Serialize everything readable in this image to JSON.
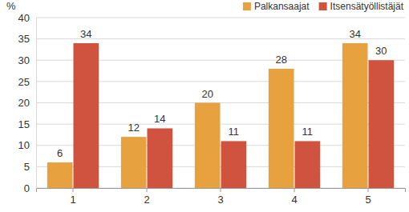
{
  "chart_data": {
    "type": "bar",
    "y_label": "%",
    "categories": [
      "1",
      "2",
      "3",
      "4",
      "5"
    ],
    "series": [
      {
        "name": "Palkansaajat",
        "color": "#e8a13f",
        "values": [
          6,
          12,
          20,
          28,
          34
        ]
      },
      {
        "name": "Itsensätyöllistäjät",
        "color": "#cf533f",
        "values": [
          34,
          14,
          11,
          11,
          30
        ]
      }
    ],
    "ylim": [
      0,
      40
    ],
    "yticks": [
      0,
      5,
      10,
      15,
      20,
      25,
      30,
      35,
      40
    ],
    "grid": true,
    "legend": "top-right",
    "data_labels": true
  }
}
